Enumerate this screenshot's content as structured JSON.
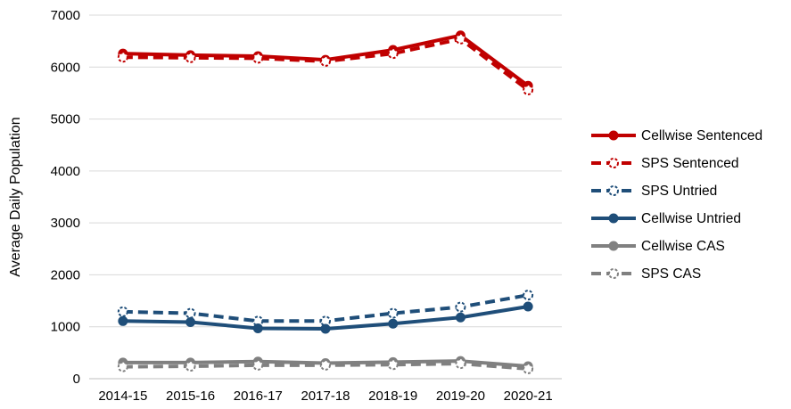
{
  "chart_data": {
    "type": "line",
    "ylabel": "Average Daily Population",
    "xlabel": "",
    "ylim": [
      0,
      7000
    ],
    "yticks": [
      0,
      1000,
      2000,
      3000,
      4000,
      5000,
      6000,
      7000
    ],
    "grid": true,
    "legend_position": "right",
    "categories": [
      "2014-15",
      "2015-16",
      "2016-17",
      "2017-18",
      "2018-19",
      "2019-20",
      "2020-21"
    ],
    "series": [
      {
        "name": "Cellwise Sentenced",
        "color": "#c00000",
        "style": "solid",
        "marker": "filled",
        "values": [
          6260,
          6230,
          6210,
          6140,
          6330,
          6610,
          5640
        ]
      },
      {
        "name": "SPS Sentenced",
        "color": "#c00000",
        "style": "dashed",
        "marker": "open",
        "values": [
          6190,
          6180,
          6170,
          6110,
          6260,
          6540,
          5560
        ]
      },
      {
        "name": "SPS Untried",
        "color": "#1f4e79",
        "style": "dashed",
        "marker": "open",
        "values": [
          1290,
          1260,
          1110,
          1110,
          1260,
          1380,
          1610
        ]
      },
      {
        "name": "Cellwise Untried",
        "color": "#1f4e79",
        "style": "solid",
        "marker": "filled",
        "values": [
          1110,
          1090,
          970,
          960,
          1060,
          1180,
          1390
        ]
      },
      {
        "name": "Cellwise CAS",
        "color": "#808080",
        "style": "solid",
        "marker": "filled",
        "values": [
          310,
          310,
          330,
          300,
          320,
          340,
          240
        ]
      },
      {
        "name": "SPS CAS",
        "color": "#808080",
        "style": "dashed",
        "marker": "open",
        "values": [
          230,
          240,
          260,
          260,
          270,
          290,
          190
        ]
      }
    ]
  }
}
